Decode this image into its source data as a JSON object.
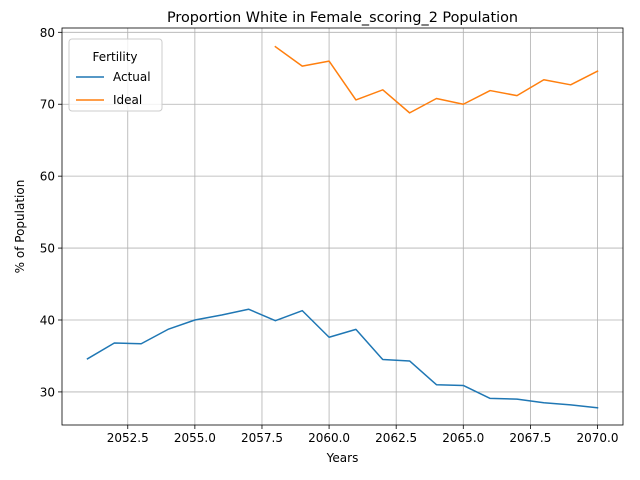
{
  "chart_data": {
    "type": "line",
    "title": "Proportion White in Female_scoring_2 Population",
    "xlabel": "Years",
    "ylabel": "% of Population",
    "xlim": [
      2050.05,
      2070.95
    ],
    "ylim": [
      25.4,
      80.6
    ],
    "grid": true,
    "xticks": [
      2052.5,
      2055.0,
      2057.5,
      2060.0,
      2062.5,
      2065.0,
      2067.5,
      2070.0
    ],
    "xtick_labels": [
      "2052.5",
      "2055.0",
      "2057.5",
      "2060.0",
      "2062.5",
      "2065.0",
      "2067.5",
      "2070.0"
    ],
    "yticks": [
      30,
      40,
      50,
      60,
      70,
      80
    ],
    "ytick_labels": [
      "30",
      "40",
      "50",
      "60",
      "70",
      "80"
    ],
    "legend": {
      "title": "Fertility",
      "placement": "top-left"
    },
    "series": [
      {
        "name": "Actual",
        "color": "#1f77b4",
        "x": [
          2051,
          2052,
          2053,
          2054,
          2055,
          2056,
          2057,
          2058,
          2059,
          2060,
          2061,
          2062,
          2063,
          2064,
          2065,
          2066,
          2067,
          2068,
          2069,
          2070
        ],
        "values": [
          34.6,
          36.8,
          36.7,
          38.7,
          40.0,
          40.7,
          41.5,
          39.9,
          41.3,
          37.6,
          38.7,
          34.5,
          34.3,
          31.0,
          30.9,
          29.1,
          29.0,
          28.5,
          28.2,
          27.8
        ]
      },
      {
        "name": "Ideal",
        "color": "#ff7f0e",
        "x": [
          2058,
          2059,
          2060,
          2061,
          2062,
          2063,
          2064,
          2065,
          2066,
          2067,
          2068,
          2069,
          2070
        ],
        "values": [
          78.0,
          75.3,
          76.0,
          70.6,
          72.0,
          68.8,
          70.8,
          70.0,
          71.9,
          71.2,
          73.4,
          72.7,
          74.6
        ]
      }
    ]
  }
}
